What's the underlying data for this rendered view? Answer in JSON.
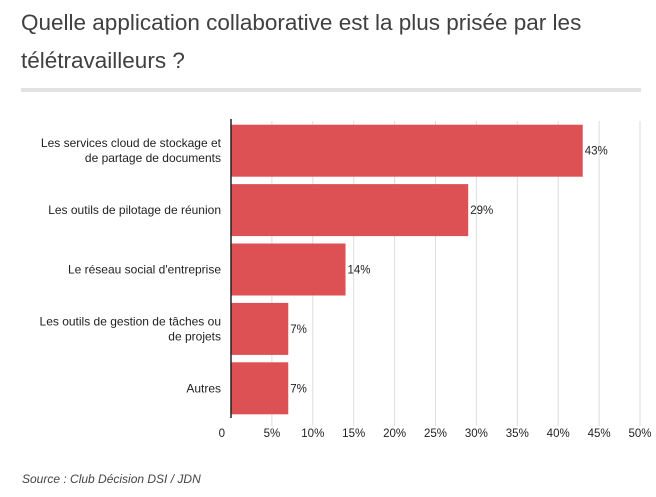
{
  "header": {
    "title": "Quelle application collaborative est la plus prisée par les télétravailleurs ?"
  },
  "footer": {
    "source": "Source :  Club Décision DSI / JDN"
  },
  "colors": {
    "bar": "#dd5154",
    "grid": "#dddddd",
    "axis": "#222222"
  },
  "chart_data": {
    "type": "bar",
    "orientation": "horizontal",
    "categories": [
      [
        "Les services cloud de stockage et",
        "de partage de documents"
      ],
      [
        "Les outils de pilotage de réunion"
      ],
      [
        "Le réseau social d'entreprise"
      ],
      [
        "Les outils de gestion de tâches ou",
        "de projets"
      ],
      [
        "Autres"
      ]
    ],
    "values": [
      43,
      29,
      14,
      7,
      7
    ],
    "value_labels": [
      "43%",
      "29%",
      "14%",
      "7%",
      "7%"
    ],
    "xlim": [
      0,
      50
    ],
    "xticks": [
      0,
      5,
      10,
      15,
      20,
      25,
      30,
      35,
      40,
      45,
      50
    ],
    "xtick_labels": [
      "0",
      "5%",
      "10%",
      "15%",
      "20%",
      "25%",
      "30%",
      "35%",
      "40%",
      "45%",
      "50%"
    ],
    "title": "Quelle application collaborative est la plus prisée par les télétravailleurs ?",
    "xlabel": "",
    "ylabel": "",
    "grid": true,
    "legend": "none"
  }
}
